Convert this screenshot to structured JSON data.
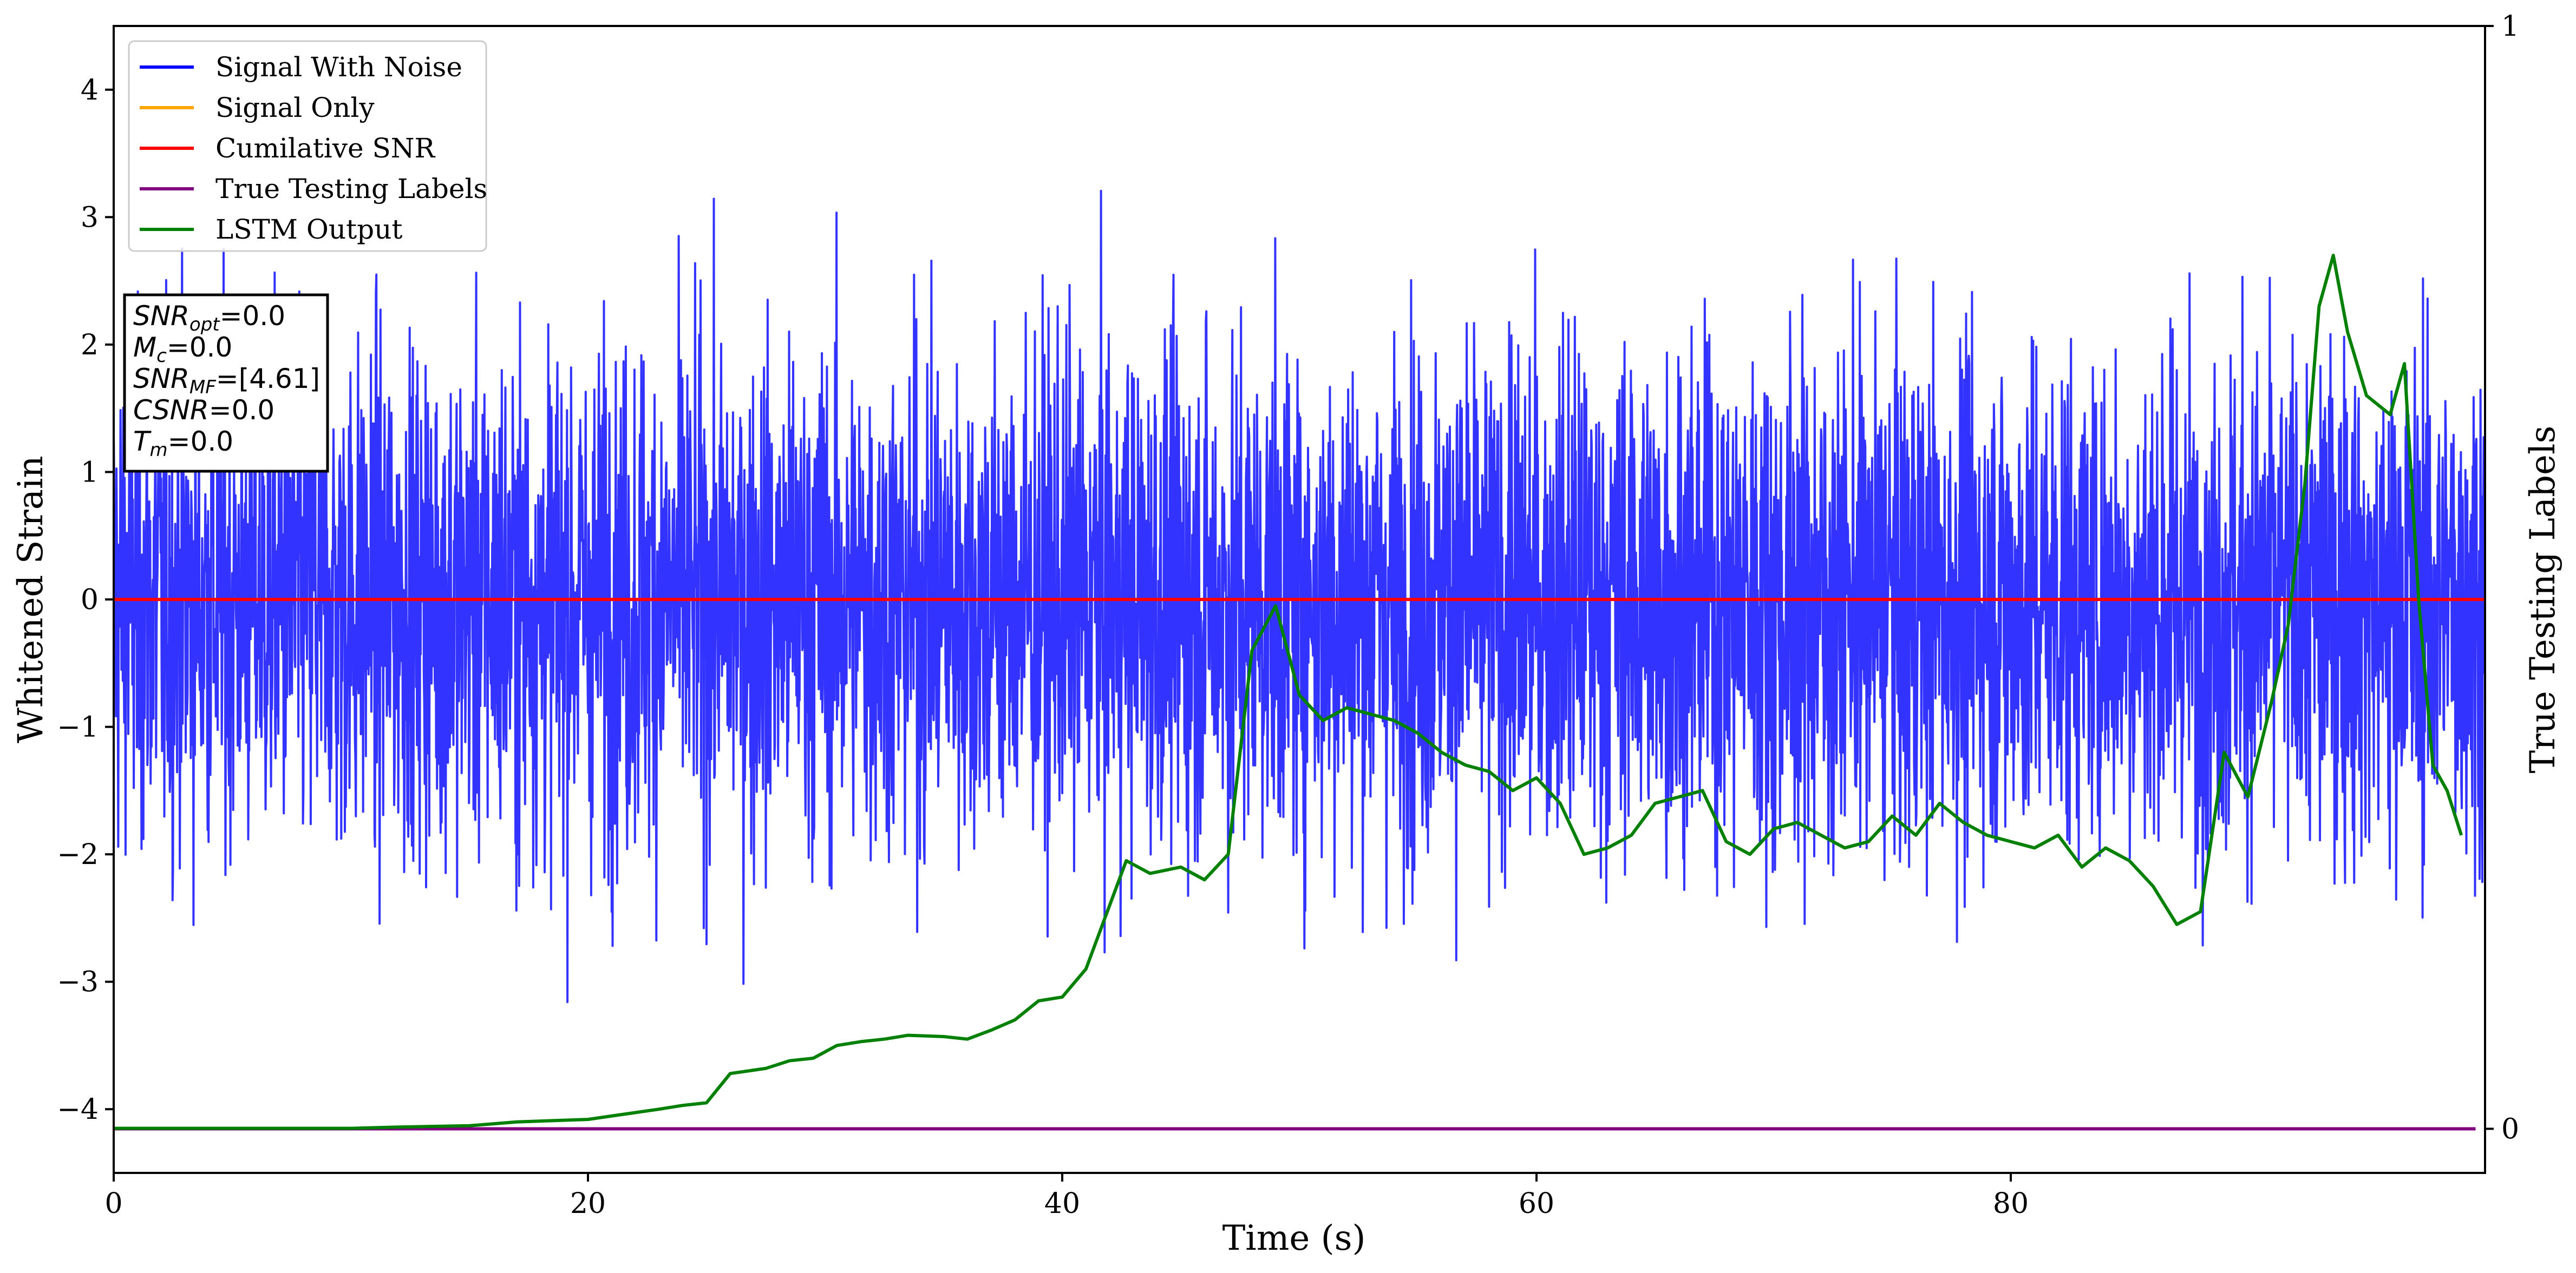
{
  "chart_data": {
    "type": "line",
    "xlabel": "Time (s)",
    "ylabel": "Whitened Strain",
    "y2label": "True Testing Labels",
    "xlim": [
      0,
      100
    ],
    "ylim": [
      -4.5,
      4.5
    ],
    "y2lim": [
      -0.04,
      1.0
    ],
    "xticks": [
      0,
      20,
      40,
      60,
      80
    ],
    "yticks": [
      -4,
      -3,
      -2,
      -1,
      0,
      1,
      2,
      3,
      4
    ],
    "y2ticks": [
      0,
      1
    ],
    "legend_placement": "top-left",
    "grid": false,
    "legend": [
      {
        "label": "Signal With Noise",
        "color": "#0000ff"
      },
      {
        "label": "Signal Only",
        "color": "#ffa500"
      },
      {
        "label": "Cumilative SNR",
        "color": "#ff0000"
      },
      {
        "label": "True Testing Labels",
        "color": "#800080"
      },
      {
        "label": "LSTM Output",
        "color": "#008000"
      }
    ],
    "annotation": {
      "lines": [
        {
          "main": "SNR",
          "sub": "opt",
          "rest": "=0.0"
        },
        {
          "main": "M",
          "sub": "c",
          "rest": "=0.0"
        },
        {
          "main": "SNR",
          "sub": "MF",
          "rest": "=[4.61]"
        },
        {
          "main": "CSNR",
          "sub": "",
          "rest": "=0.0"
        },
        {
          "main": "T",
          "sub": "m",
          "rest": "=0.0"
        }
      ]
    },
    "series": [
      {
        "name": "Signal With Noise",
        "axis": "left",
        "color": "#0000ff",
        "description": "dense noise trace centred on 0 with amplitude about ±4",
        "noise_std": 1.0,
        "range": [
          -3.9,
          4.1
        ]
      },
      {
        "name": "Signal Only",
        "axis": "left",
        "color": "#ffa500",
        "x": [
          0,
          100
        ],
        "y": [
          0,
          0
        ]
      },
      {
        "name": "Cumilative SNR",
        "axis": "left",
        "color": "#ff0000",
        "x": [
          0,
          100
        ],
        "y": [
          0,
          0
        ]
      },
      {
        "name": "True Testing Labels",
        "axis": "right",
        "color": "#800080",
        "x": [
          0,
          99.6
        ],
        "y": [
          0,
          0
        ]
      },
      {
        "name": "LSTM Output",
        "axis": "left",
        "color": "#008000",
        "x": [
          0,
          5,
          10,
          12,
          15,
          17,
          18.5,
          20,
          21.5,
          23,
          24,
          25,
          26,
          27.5,
          28.5,
          29.5,
          30.5,
          31.5,
          32.5,
          33.5,
          35,
          36,
          37,
          38,
          39,
          40,
          41,
          42,
          42.7,
          43.7,
          45,
          46,
          47,
          48,
          49,
          50,
          51,
          52,
          53,
          54,
          55,
          56,
          57,
          58,
          59,
          60,
          61,
          62,
          63,
          64,
          65,
          66,
          67,
          68,
          69,
          70,
          71,
          72,
          73,
          74,
          75,
          76,
          77,
          78,
          79,
          80,
          81,
          82,
          83,
          84,
          85,
          86,
          87,
          88,
          89,
          90,
          91,
          91.7,
          92.4,
          93,
          93.6,
          94.2,
          95,
          96,
          96.6,
          97.2,
          97.8,
          98.4,
          99
        ],
        "y": [
          -4.15,
          -4.15,
          -4.15,
          -4.14,
          -4.13,
          -4.1,
          -4.09,
          -4.08,
          -4.04,
          -4.0,
          -3.97,
          -3.95,
          -3.72,
          -3.68,
          -3.62,
          -3.6,
          -3.5,
          -3.47,
          -3.45,
          -3.42,
          -3.43,
          -3.45,
          -3.38,
          -3.3,
          -3.15,
          -3.12,
          -2.9,
          -2.4,
          -2.05,
          -2.15,
          -2.1,
          -2.2,
          -2.0,
          -0.4,
          -0.05,
          -0.75,
          -0.95,
          -0.85,
          -0.9,
          -0.95,
          -1.05,
          -1.2,
          -1.3,
          -1.35,
          -1.5,
          -1.4,
          -1.6,
          -2.0,
          -1.95,
          -1.85,
          -1.6,
          -1.55,
          -1.5,
          -1.9,
          -2.0,
          -1.8,
          -1.75,
          -1.85,
          -1.95,
          -1.9,
          -1.7,
          -1.85,
          -1.6,
          -1.75,
          -1.85,
          -1.9,
          -1.95,
          -1.85,
          -2.1,
          -1.95,
          -2.05,
          -2.25,
          -2.55,
          -2.45,
          -1.2,
          -1.55,
          -0.8,
          -0.2,
          0.9,
          2.3,
          2.7,
          2.1,
          1.6,
          1.45,
          1.85,
          0.0,
          -1.3,
          -1.5,
          -1.85
        ]
      }
    ]
  }
}
